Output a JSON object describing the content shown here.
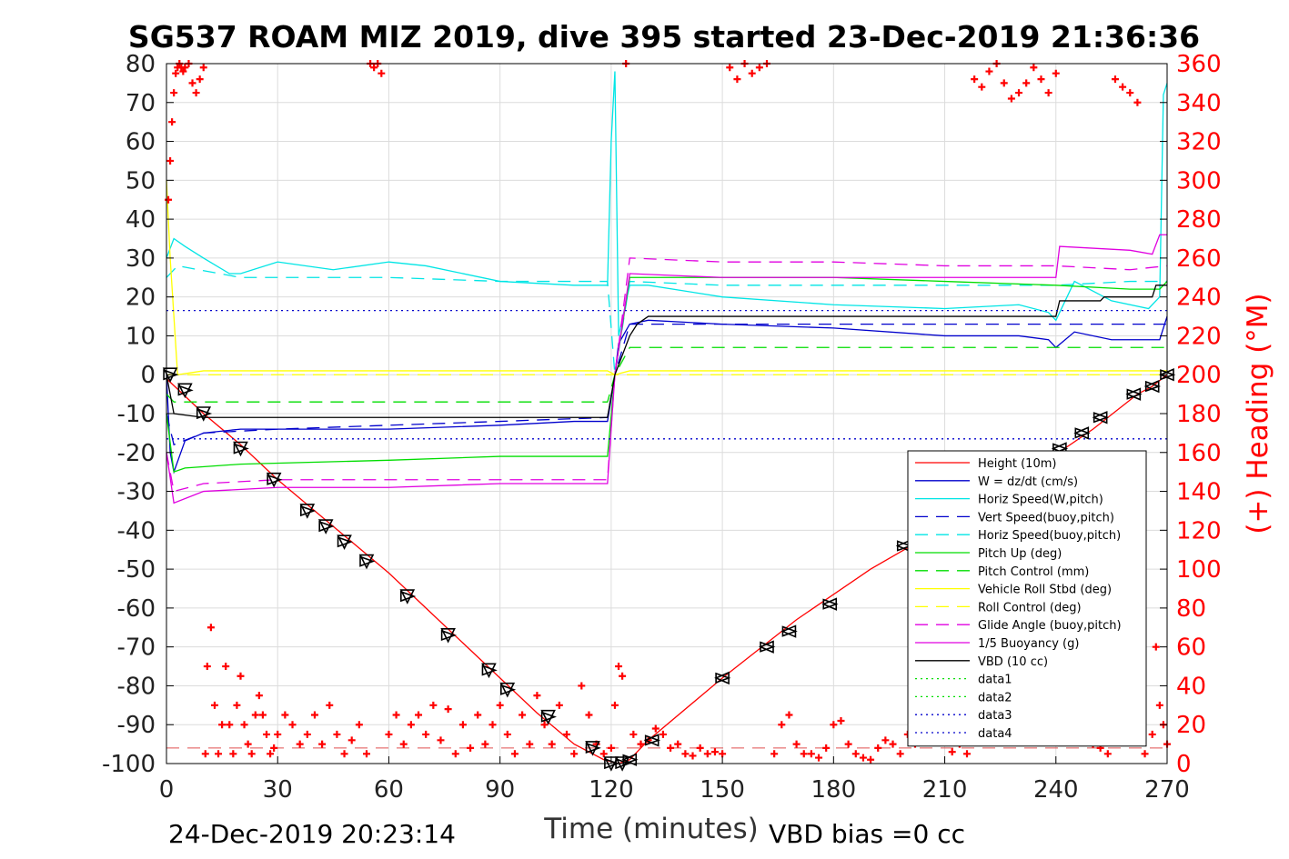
{
  "footer": {
    "timestamp": "24-Dec-2019 20:23:14",
    "vbd_bias": "VBD bias =0 cc"
  },
  "chart_data": {
    "type": "line",
    "title": "SG537 ROAM MIZ 2019, dive 395 started 23-Dec-2019 21:36:36",
    "xlabel": "Time (minutes)",
    "ylabel": "",
    "y2label": "(+) Heading (°M)",
    "xlim": [
      0,
      270
    ],
    "ylim": [
      -100,
      80
    ],
    "y2lim": [
      0,
      360
    ],
    "x_ticks": [
      0,
      30,
      60,
      90,
      120,
      150,
      180,
      210,
      240,
      270
    ],
    "y_ticks": [
      -100,
      -90,
      -80,
      -70,
      -60,
      -50,
      -40,
      -30,
      -20,
      -10,
      0,
      10,
      20,
      30,
      40,
      50,
      60,
      70,
      80
    ],
    "y2_ticks": [
      0,
      20,
      40,
      60,
      80,
      100,
      120,
      140,
      160,
      180,
      200,
      220,
      240,
      260,
      280,
      300,
      320,
      340,
      360
    ],
    "grid": true,
    "legend_position": "bottom-right",
    "colors": {
      "red": "#ff0000",
      "blue": "#0000cc",
      "cyan": "#00e5e5",
      "green": "#00dd00",
      "yellow": "#ffff00",
      "magenta": "#e000e0",
      "black": "#000000"
    },
    "series": [
      {
        "name": "Height (10m)",
        "color": "#ff0000",
        "style": "solid",
        "x": [
          0,
          10,
          20,
          30,
          40,
          50,
          60,
          70,
          80,
          90,
          100,
          110,
          118,
          122,
          125,
          130,
          150,
          170,
          190,
          210,
          230,
          250,
          262,
          266,
          270
        ],
        "y": [
          -1,
          -10,
          -18,
          -27,
          -35,
          -43,
          -51,
          -60,
          -69,
          -78,
          -87,
          -95,
          -99,
          -100,
          -99,
          -94,
          -78,
          -63,
          -50,
          -39,
          -27,
          -14,
          -5,
          -3,
          0
        ]
      },
      {
        "name": "W = dz/dt (cm/s)",
        "color": "#0000cc",
        "style": "solid",
        "x": [
          0,
          1,
          2,
          5,
          10,
          20,
          30,
          60,
          90,
          110,
          119,
          121,
          122,
          125,
          130,
          150,
          180,
          210,
          230,
          238,
          240,
          245,
          255,
          268,
          270
        ],
        "y": [
          0,
          -20,
          -25,
          -17,
          -15,
          -14,
          -14,
          -14,
          -13,
          -12,
          -12,
          0,
          8,
          13,
          14,
          13,
          12,
          10,
          10,
          9,
          7,
          11,
          9,
          9,
          15
        ]
      },
      {
        "name": "Horiz Speed(W,pitch)",
        "color": "#00e5e5",
        "style": "solid",
        "x": [
          0,
          2,
          5,
          10,
          17,
          20,
          30,
          45,
          60,
          70,
          90,
          110,
          119,
          120,
          121,
          122,
          125,
          130,
          150,
          180,
          210,
          230,
          238,
          240,
          245,
          255,
          265,
          268,
          269,
          270
        ],
        "y": [
          30,
          35,
          33,
          30,
          26,
          26,
          29,
          27,
          29,
          28,
          24,
          23,
          23,
          60,
          78,
          10,
          23,
          23,
          20,
          18,
          17,
          18,
          16,
          14,
          24,
          19,
          17,
          20,
          72,
          75
        ]
      },
      {
        "name": "Vert Speed(buoy,pitch)",
        "color": "#0000cc",
        "style": "dash",
        "x": [
          0,
          2,
          10,
          30,
          60,
          90,
          119,
          121,
          125,
          150,
          180,
          210,
          240,
          270
        ],
        "y": [
          -10,
          -18,
          -15,
          -14,
          -13,
          -12,
          -11,
          0,
          13,
          13,
          13,
          13,
          13,
          13
        ]
      },
      {
        "name": "Horiz Speed(buoy,pitch)",
        "color": "#00e5e5",
        "style": "dash",
        "x": [
          0,
          3,
          20,
          60,
          90,
          119,
          121,
          125,
          150,
          180,
          210,
          240,
          260,
          270
        ],
        "y": [
          25,
          28,
          25,
          25,
          24,
          24,
          0,
          24,
          23,
          23,
          23,
          23,
          24,
          24
        ]
      },
      {
        "name": "Pitch Up (deg)",
        "color": "#00dd00",
        "style": "solid",
        "x": [
          0,
          2,
          5,
          20,
          60,
          90,
          119,
          121,
          125,
          150,
          180,
          210,
          240,
          260,
          268,
          270
        ],
        "y": [
          -10,
          -25,
          -24,
          -23,
          -22,
          -21,
          -21,
          0,
          25,
          25,
          25,
          24,
          23,
          22,
          22,
          24
        ]
      },
      {
        "name": "Pitch Control (mm)",
        "color": "#00dd00",
        "style": "dash",
        "x": [
          0,
          2,
          119,
          121,
          125,
          270
        ],
        "y": [
          -5,
          -7,
          -7,
          0,
          7,
          7
        ]
      },
      {
        "name": "Vehicle Roll Stbd (deg)",
        "color": "#ffff00",
        "style": "solid",
        "x": [
          0,
          1,
          3,
          10,
          30,
          60,
          90,
          119,
          121,
          125,
          150,
          180,
          210,
          240,
          270
        ],
        "y": [
          50,
          30,
          0,
          1,
          1,
          1,
          1,
          1,
          0,
          1,
          1,
          1,
          1,
          1,
          1
        ]
      },
      {
        "name": "Roll Control (deg)",
        "color": "#ffff00",
        "style": "dash",
        "x": [
          0,
          270
        ],
        "y": [
          0,
          0
        ]
      },
      {
        "name": "Glide Angle (buoy,pitch)",
        "color": "#e000e0",
        "style": "dash",
        "x": [
          0,
          2,
          10,
          30,
          60,
          90,
          119,
          121,
          125,
          150,
          180,
          210,
          240,
          260,
          270
        ],
        "y": [
          -20,
          -30,
          -28,
          -27,
          -27,
          -27,
          -27,
          0,
          30,
          29,
          29,
          28,
          28,
          27,
          28
        ]
      },
      {
        "name": "1/5 Buoyancy (g)",
        "color": "#e000e0",
        "style": "solid",
        "x": [
          0,
          2,
          10,
          30,
          60,
          90,
          119,
          121,
          125,
          150,
          180,
          210,
          240,
          241,
          260,
          266,
          268,
          270
        ],
        "y": [
          -20,
          -33,
          -30,
          -29,
          -29,
          -28,
          -28,
          0,
          26,
          25,
          25,
          25,
          25,
          33,
          32,
          31,
          36,
          36
        ]
      },
      {
        "name": "VBD (10 cc)",
        "color": "#000000",
        "style": "solid",
        "x": [
          0,
          2,
          10,
          119,
          121,
          125,
          127,
          130,
          240,
          241,
          252,
          253,
          266,
          267,
          270
        ],
        "y": [
          0,
          -10,
          -11,
          -11,
          0,
          10,
          13,
          15,
          15,
          19,
          19,
          20,
          20,
          23,
          23
        ]
      },
      {
        "name": "data1",
        "color": "#00dd00",
        "style": "dot",
        "x": [],
        "y": []
      },
      {
        "name": "data2",
        "color": "#00dd00",
        "style": "dot",
        "x": [],
        "y": []
      },
      {
        "name": "data3",
        "color": "#0000cc",
        "style": "dot",
        "x": [
          0,
          270
        ],
        "y": [
          16.5,
          16.5
        ]
      },
      {
        "name": "data4",
        "color": "#0000cc",
        "style": "dot",
        "x": [
          0,
          270
        ],
        "y": [
          -16.5,
          -16.5
        ]
      }
    ],
    "extra_lines": [
      {
        "color": "#e05050",
        "style": "dash",
        "x": [
          0,
          270
        ],
        "y": [
          -96,
          -96
        ]
      }
    ],
    "heading_points": {
      "color": "#ff0000",
      "marker": "+",
      "axis": "right",
      "x": [
        0.5,
        1,
        1.5,
        2,
        2.5,
        3,
        3.5,
        4,
        4.5,
        5,
        6,
        7,
        8,
        9,
        10,
        10.5,
        11,
        12,
        13,
        14,
        15,
        16,
        17,
        18,
        19,
        20,
        21,
        22,
        23,
        24,
        25,
        26,
        27,
        28,
        29,
        30,
        32,
        34,
        36,
        38,
        40,
        42,
        44,
        46,
        48,
        50,
        52,
        54,
        55,
        56,
        57,
        58,
        60,
        62,
        64,
        66,
        68,
        70,
        72,
        74,
        76,
        78,
        80,
        82,
        84,
        86,
        88,
        90,
        92,
        94,
        96,
        98,
        100,
        102,
        104,
        106,
        108,
        110,
        112,
        114,
        116,
        118,
        120,
        121,
        122,
        123,
        124,
        126,
        128,
        130,
        132,
        134,
        136,
        138,
        140,
        142,
        144,
        146,
        148,
        150,
        152,
        154,
        156,
        158,
        160,
        162,
        164,
        166,
        168,
        170,
        172,
        174,
        176,
        178,
        180,
        182,
        184,
        186,
        188,
        190,
        192,
        194,
        196,
        198,
        200,
        202,
        204,
        206,
        208,
        210,
        212,
        214,
        216,
        218,
        220,
        222,
        224,
        226,
        228,
        230,
        232,
        234,
        236,
        238,
        240,
        242,
        244,
        246,
        248,
        250,
        252,
        254,
        256,
        258,
        260,
        262,
        264,
        266,
        267,
        268,
        269,
        270
      ],
      "y": [
        290,
        310,
        330,
        345,
        355,
        358,
        360,
        358,
        356,
        358,
        360,
        350,
        345,
        352,
        358,
        5,
        50,
        70,
        30,
        5,
        20,
        50,
        20,
        5,
        30,
        45,
        20,
        10,
        5,
        25,
        35,
        25,
        15,
        5,
        8,
        15,
        25,
        20,
        10,
        15,
        25,
        10,
        30,
        15,
        5,
        12,
        20,
        5,
        360,
        358,
        360,
        355,
        15,
        25,
        10,
        20,
        25,
        15,
        30,
        12,
        28,
        5,
        20,
        8,
        25,
        10,
        20,
        30,
        15,
        5,
        25,
        10,
        35,
        20,
        10,
        30,
        15,
        5,
        40,
        25,
        10,
        5,
        8,
        30,
        50,
        45,
        360,
        15,
        10,
        12,
        18,
        15,
        8,
        10,
        5,
        4,
        8,
        5,
        6,
        5,
        358,
        352,
        360,
        355,
        358,
        360,
        5,
        20,
        25,
        10,
        5,
        5,
        3,
        8,
        20,
        22,
        10,
        5,
        3,
        2,
        8,
        12,
        10,
        5,
        15,
        10,
        20,
        15,
        12,
        18,
        6,
        10,
        5,
        352,
        348,
        356,
        360,
        350,
        342,
        345,
        350,
        358,
        352,
        345,
        355,
        15,
        25,
        18,
        30,
        10,
        8,
        5,
        352,
        348,
        345,
        340,
        5,
        15,
        60,
        30,
        20,
        10
      ]
    },
    "markers": {
      "color": "#000000",
      "down_x": [
        1,
        5,
        10,
        20,
        29,
        38,
        43,
        48,
        54,
        65,
        76,
        87,
        92,
        103,
        115,
        120,
        123
      ],
      "down_y": [
        0,
        -4,
        -10,
        -19,
        -27,
        -35,
        -39,
        -43,
        -48,
        -57,
        -67,
        -76,
        -81,
        -88,
        -96,
        -100,
        -100
      ],
      "up_x": [
        125,
        131,
        150,
        162,
        168,
        179,
        199,
        241,
        247,
        252,
        261,
        266,
        270
      ],
      "up_y": [
        -99,
        -94,
        -78,
        -70,
        -66,
        -59,
        -44,
        -19,
        -15,
        -11,
        -5,
        -3,
        0
      ]
    }
  }
}
